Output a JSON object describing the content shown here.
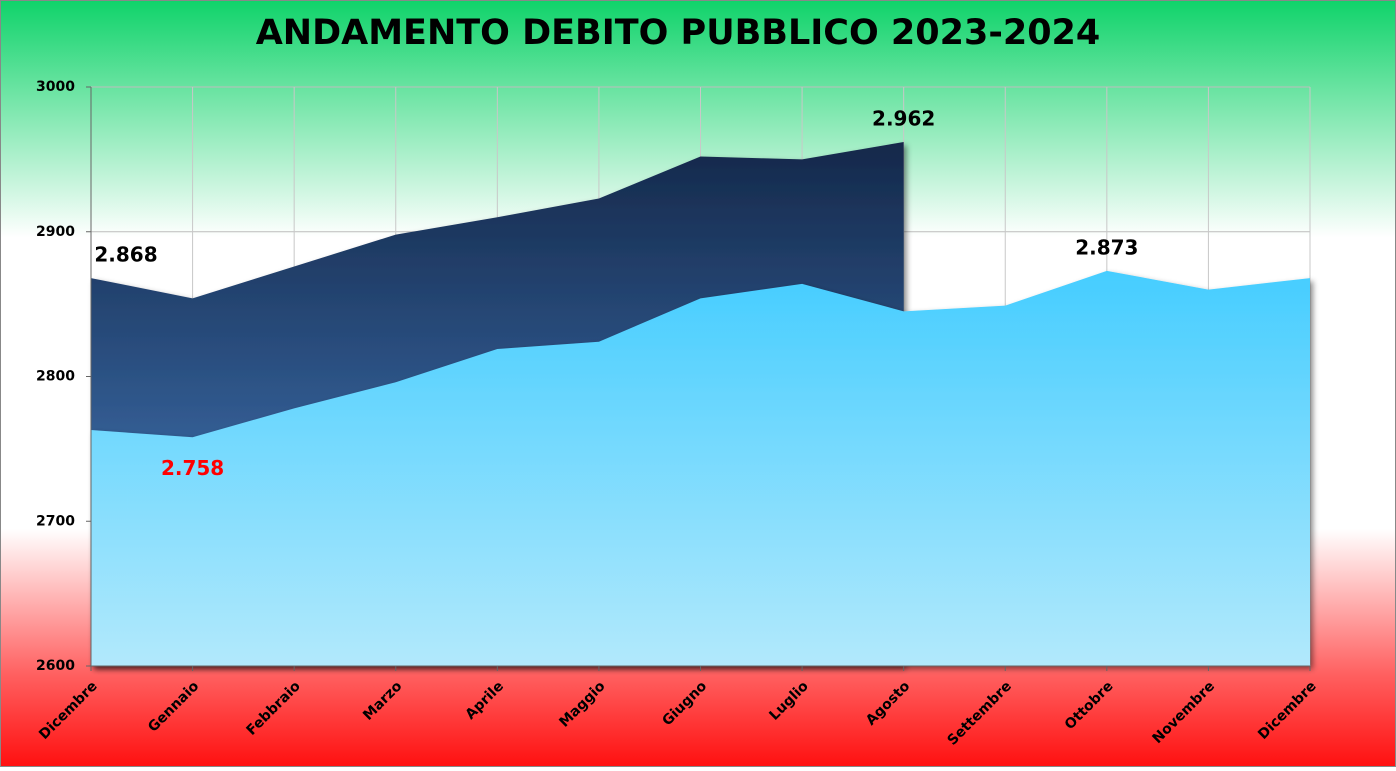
{
  "chart_data": {
    "type": "area",
    "title": "ANDAMENTO DEBITO PUBBLICO 2023-2024",
    "categories": [
      "Dicembre",
      "Gennaio",
      "Febbraio",
      "Marzo",
      "Aprile",
      "Maggio",
      "Giugno",
      "Luglio",
      "Agosto",
      "Settembre",
      "Ottobre",
      "Novembre",
      "Dicembre"
    ],
    "series": [
      {
        "color": [
          "#14284a",
          "#4a86cc"
        ],
        "values": [
          2868,
          2854,
          2876,
          2898,
          2910,
          2923,
          2952,
          2950,
          2962,
          null,
          null,
          null,
          null
        ],
        "value_labels": [
          "2.868",
          null,
          null,
          null,
          null,
          null,
          null,
          null,
          "2.962",
          null,
          null,
          null,
          null
        ],
        "value_label_colors": [
          "#000000",
          null,
          null,
          null,
          null,
          null,
          null,
          null,
          "#000000",
          null,
          null,
          null,
          null
        ]
      },
      {
        "color": [
          "#45cdff",
          "#b2e9fc"
        ],
        "values": [
          2763,
          2758,
          2778,
          2796,
          2819,
          2824,
          2854,
          2864,
          2845,
          2849,
          2873,
          2860,
          2868
        ],
        "value_labels": [
          null,
          "2.758",
          null,
          null,
          null,
          null,
          null,
          null,
          null,
          null,
          "2.873",
          null,
          null
        ],
        "value_label_colors": [
          null,
          "#ff0000",
          null,
          null,
          null,
          null,
          null,
          null,
          null,
          null,
          "#000000",
          null,
          null
        ]
      }
    ],
    "ylim": [
      2600,
      3000
    ],
    "yticks": [
      2600,
      2700,
      2800,
      2900,
      3000
    ],
    "grid": true
  }
}
